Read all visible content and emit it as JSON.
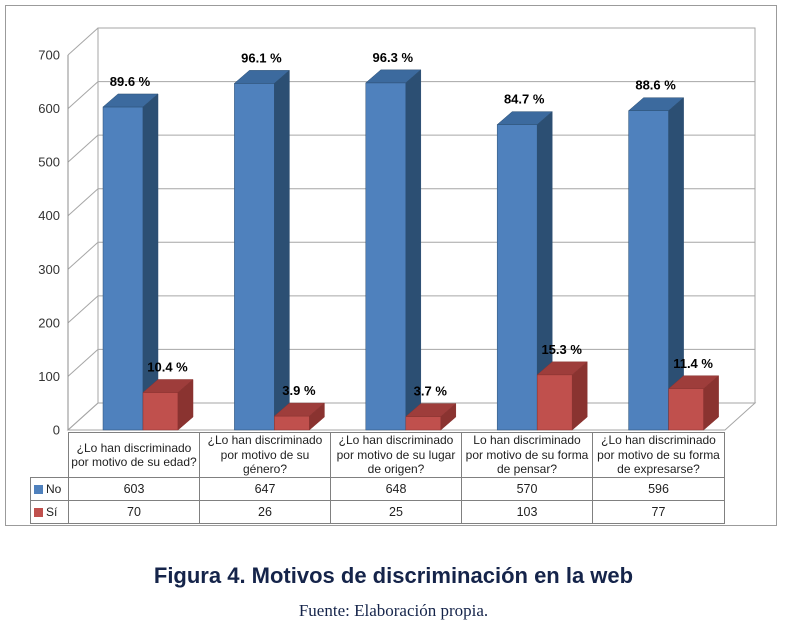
{
  "figure": {
    "caption": "Figura 4. Motivos de discriminación en la web",
    "source": "Fuente: Elaboración propia."
  },
  "chart_data": {
    "type": "bar",
    "style": "3d-clustered-with-data-table",
    "title": "",
    "xlabel": "",
    "ylabel": "",
    "ylim": [
      0,
      700
    ],
    "ytick_step": 100,
    "grid": true,
    "legend_position": "data-table-left",
    "categories": [
      "¿Lo han discriminado por motivo de su edad?",
      "¿Lo han discriminado por motivo de su género?",
      "¿Lo han discriminado por motivo de su lugar de origen?",
      "Lo han discriminado por motivo de su forma de pensar?",
      "¿Lo han discriminado por motivo de su forma de expresarse?"
    ],
    "series": [
      {
        "name": "No",
        "values": [
          603,
          647,
          648,
          570,
          596
        ],
        "percent_labels": [
          "89.6 %",
          "96.1 %",
          "96.3 %",
          "84.7 %",
          "88.6 %"
        ],
        "colors": {
          "front": "#4f81bd",
          "top": "#3c6a9e",
          "side": "#2c4f73"
        }
      },
      {
        "name": "Sí",
        "values": [
          70,
          26,
          25,
          103,
          77
        ],
        "percent_labels": [
          "10.4 %",
          "3.9 %",
          "3.7 %",
          "15.3 %",
          "11.4 %"
        ],
        "colors": {
          "front": "#c0504d",
          "top": "#9e3d3b",
          "side": "#8a3330"
        }
      }
    ]
  },
  "palette": {
    "grid": "#a6a6a6",
    "axis": "#8c8c8c",
    "table_border": "#808080",
    "tick_text": "#333333",
    "table_text": "#1f1f1f",
    "caption_text": "#15244a",
    "chart_border": "#9b9b9b",
    "background": "#ffffff"
  }
}
